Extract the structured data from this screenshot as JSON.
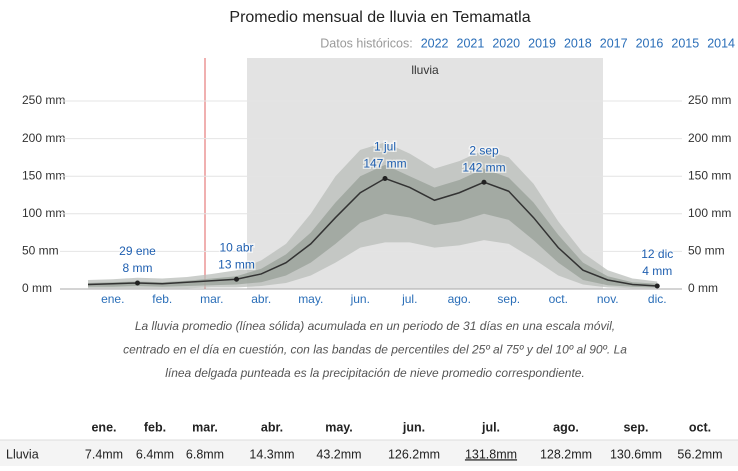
{
  "chart_data": {
    "type": "line",
    "title": "Promedio mensual de lluvia en Temamatla",
    "history_label": "Datos históricos:",
    "years": [
      "2022",
      "2021",
      "2020",
      "2019",
      "2018",
      "2017",
      "2016",
      "2015",
      "2014"
    ],
    "season_label": "lluvia",
    "categories": [
      null,
      "ene.",
      null,
      "feb.",
      null,
      "mar.",
      null,
      "abr.",
      null,
      "may.",
      null,
      "jun.",
      null,
      "jul.",
      null,
      "ago.",
      null,
      "sep.",
      null,
      "oct.",
      null,
      "nov.",
      null,
      "dic."
    ],
    "series": [
      {
        "name": "lluvia",
        "color": "#333333",
        "values": [
          6,
          7,
          8,
          7,
          9,
          11,
          13,
          20,
          35,
          60,
          95,
          128,
          147,
          135,
          118,
          128,
          142,
          130,
          95,
          55,
          25,
          12,
          6,
          4
        ]
      }
    ],
    "bands": [
      {
        "color": "#b9beb9",
        "low": [
          1,
          1,
          1,
          1,
          1,
          2,
          2,
          4,
          8,
          18,
          35,
          55,
          62,
          62,
          55,
          58,
          65,
          60,
          40,
          18,
          6,
          2,
          1,
          1
        ],
        "high": [
          12,
          13,
          15,
          14,
          16,
          20,
          25,
          38,
          60,
          100,
          150,
          185,
          195,
          180,
          160,
          170,
          185,
          175,
          140,
          90,
          48,
          25,
          14,
          10
        ]
      },
      {
        "color": "#98a098",
        "low": [
          3,
          3,
          4,
          3,
          4,
          5,
          6,
          9,
          18,
          35,
          60,
          88,
          100,
          95,
          85,
          90,
          100,
          92,
          65,
          35,
          12,
          5,
          3,
          2
        ],
        "high": [
          8,
          9,
          10,
          9,
          11,
          14,
          17,
          27,
          46,
          75,
          115,
          150,
          165,
          150,
          135,
          145,
          160,
          148,
          115,
          72,
          35,
          17,
          9,
          7
        ]
      }
    ],
    "annotations": [
      {
        "date": "29 ene",
        "value": 8,
        "label": "8 mm"
      },
      {
        "date": "10 abr",
        "value": 13,
        "label": "13 mm"
      },
      {
        "date": "1 jul",
        "value": 147,
        "label": "147 mm"
      },
      {
        "date": "2 sep",
        "value": 142,
        "label": "142 mm"
      },
      {
        "date": "12 dic",
        "value": 4,
        "label": "4 mm"
      }
    ],
    "ylim": [
      0,
      250
    ],
    "yticks": [
      {
        "value": 0,
        "label": "0 mm"
      },
      {
        "value": 50,
        "label": "50 mm"
      },
      {
        "value": 100,
        "label": "100 mm"
      },
      {
        "value": 150,
        "label": "150 mm"
      },
      {
        "value": 200,
        "label": "200 mm"
      },
      {
        "value": 250,
        "label": "250 mm"
      }
    ],
    "grid": true,
    "caption": [
      "La lluvia promedio (línea sólida) acumulada en un periodo de 31 días en una escala móvil,",
      "centrado en el día en cuestión, con las bandas de percentiles del 25º al 75º y del 10º al 90º. La",
      "línea delgada punteada es la precipitación de nieve promedio correspondiente."
    ]
  },
  "table": {
    "header": [
      "ene.",
      "feb.",
      "mar.",
      "abr.",
      "may.",
      "jun.",
      "jul.",
      "ago.",
      "sep.",
      "oct."
    ],
    "rows": [
      [
        "Lluvia",
        "7.4mm",
        "6.4mm",
        "6.8mm",
        "14.3mm",
        "43.2mm",
        "126.2mm",
        "131.8mm",
        "128.2mm",
        "130.6mm",
        "56.2mm"
      ]
    ]
  }
}
